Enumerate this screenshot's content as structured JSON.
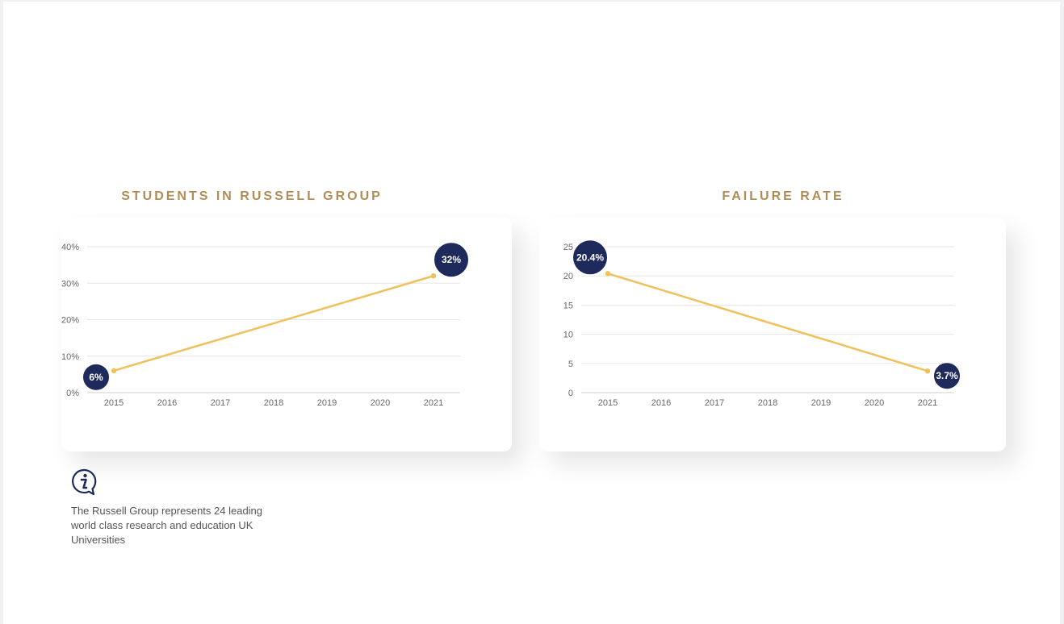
{
  "colors": {
    "title": "#b08d57",
    "line": "#f0c05a",
    "badge": "#1f2a5c",
    "grid": "#e6e6e6",
    "axis_text": "#666666"
  },
  "info": {
    "icon": "info-speech-bubble-icon",
    "text": "The Russell Group represents 24 leading world class research and education UK Universities"
  },
  "chart_data": [
    {
      "type": "line",
      "title": "STUDENTS IN RUSSELL GROUP",
      "x": [
        "2015",
        "2016",
        "2017",
        "2018",
        "2019",
        "2020",
        "2021"
      ],
      "series": [
        {
          "points": [
            {
              "x": "2015",
              "y": 6
            },
            {
              "x": "2021",
              "y": 32
            }
          ]
        }
      ],
      "ylim": [
        0,
        40
      ],
      "yticks": [
        0,
        10,
        20,
        30,
        40
      ],
      "ytick_labels": [
        "0%",
        "10%",
        "20%",
        "30%",
        "40%"
      ],
      "data_labels": [
        "6%",
        "32%"
      ],
      "grid": true,
      "xlabel": "",
      "ylabel": ""
    },
    {
      "type": "line",
      "title": "FAILURE RATE",
      "x": [
        "2015",
        "2016",
        "2017",
        "2018",
        "2019",
        "2020",
        "2021"
      ],
      "series": [
        {
          "points": [
            {
              "x": "2015",
              "y": 20.4
            },
            {
              "x": "2021",
              "y": 3.7
            }
          ]
        }
      ],
      "ylim": [
        0,
        25
      ],
      "yticks": [
        0,
        5,
        10,
        15,
        20,
        25
      ],
      "ytick_labels": [
        "0",
        "5",
        "10",
        "15",
        "20",
        "25"
      ],
      "data_labels": [
        "20.4%",
        "3.7%"
      ],
      "grid": true,
      "xlabel": "",
      "ylabel": ""
    }
  ]
}
